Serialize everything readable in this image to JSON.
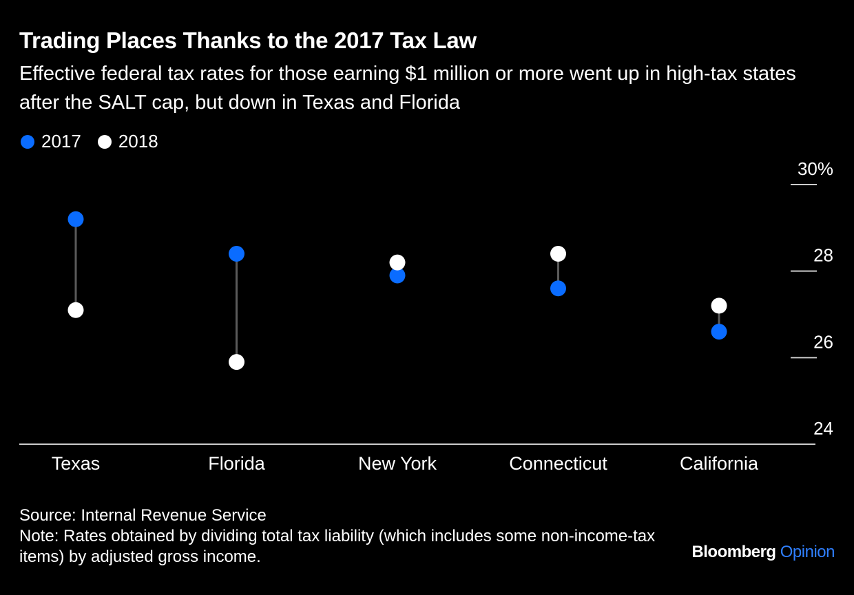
{
  "header": {
    "title": "Trading Places Thanks to the 2017 Tax Law",
    "subtitle": "Effective federal tax rates for those earning $1 million or more went up in high-tax states after the SALT cap, but down in Texas and Florida"
  },
  "legend": [
    {
      "label": "2017",
      "color": "#0a6cff"
    },
    {
      "label": "2018",
      "color": "#ffffff"
    }
  ],
  "chart_data": {
    "type": "dumbbell",
    "categories": [
      "Texas",
      "Florida",
      "New York",
      "Connecticut",
      "California"
    ],
    "series": [
      {
        "name": "2017",
        "color": "#0a6cff",
        "values": [
          29.2,
          28.4,
          27.9,
          27.6,
          26.6
        ]
      },
      {
        "name": "2018",
        "color": "#ffffff",
        "values": [
          27.1,
          25.9,
          28.2,
          28.4,
          27.2
        ]
      }
    ],
    "ylim": [
      24,
      30
    ],
    "yticks": [
      24,
      26,
      28,
      30
    ],
    "ytick_labels": [
      "24",
      "26",
      "28",
      "30%"
    ],
    "connector_color": "#5a5a5a",
    "axis_color": "#cccccc"
  },
  "footer": {
    "source": "Source: Internal Revenue Service",
    "note": "Note: Rates obtained by dividing total tax liability (which includes some non-income-tax items) by adjusted gross income.",
    "brand_main": "Bloomberg",
    "brand_accent": "Opinion"
  }
}
